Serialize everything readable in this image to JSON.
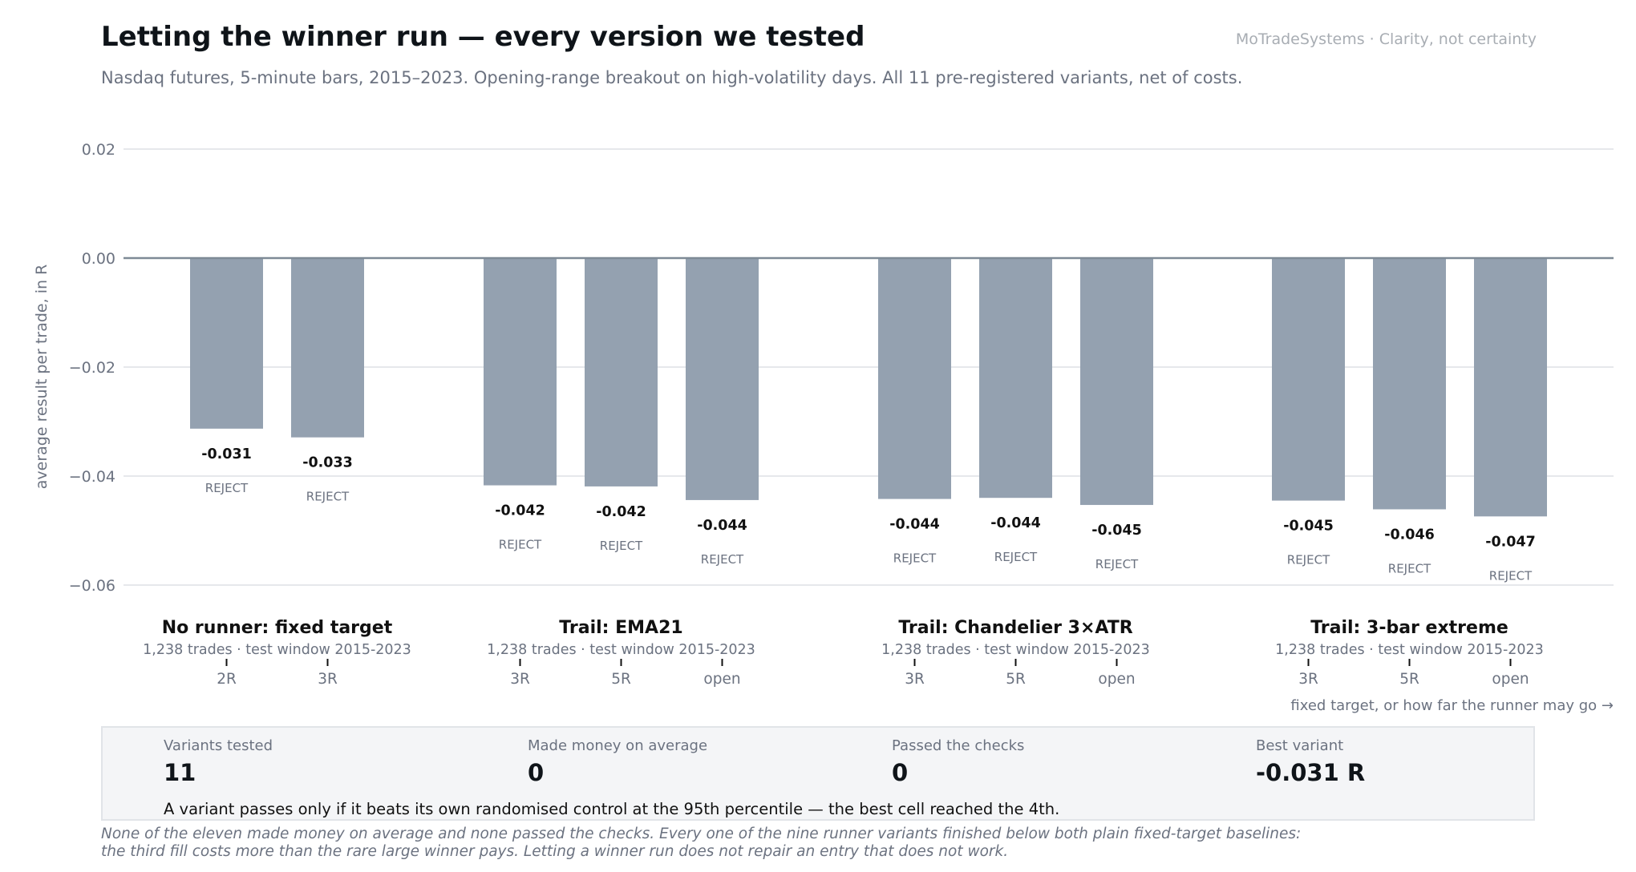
{
  "header": {
    "title": "Letting the winner run — every version we tested",
    "brand": "MoTradeSystems · Clarity, not certainty",
    "subtitle": "Nasdaq futures, 5-minute bars, 2015–2023. Opening-range breakout on high-volatility days. All 11 pre-registered variants, net of costs."
  },
  "chart_data": {
    "type": "bar",
    "ylabel": "average result per trade, in R",
    "xlabel": "fixed target, or how far the runner may go  →",
    "ylim": [
      -0.067,
      0.02
    ],
    "yticks": [
      0.02,
      0.0,
      -0.02,
      -0.04,
      -0.06
    ],
    "ytick_labels": [
      "0.02",
      "0.00",
      "−0.02",
      "−0.04",
      "−0.06"
    ],
    "grid": true,
    "bar_color": "#94a1b0",
    "groups": [
      {
        "name": "No runner: fixed target",
        "sub": "1,238 trades · test window 2015-2023",
        "bars": [
          {
            "category": "2R",
            "value": -0.0313,
            "label": "-0.031",
            "verdict": "REJECT"
          },
          {
            "category": "3R",
            "value": -0.0329,
            "label": "-0.033",
            "verdict": "REJECT"
          }
        ]
      },
      {
        "name": "Trail: EMA21",
        "sub": "1,238 trades · test window 2015-2023",
        "bars": [
          {
            "category": "3R",
            "value": -0.0417,
            "label": "-0.042",
            "verdict": "REJECT"
          },
          {
            "category": "5R",
            "value": -0.0419,
            "label": "-0.042",
            "verdict": "REJECT"
          },
          {
            "category": "open",
            "value": -0.0444,
            "label": "-0.044",
            "verdict": "REJECT"
          }
        ]
      },
      {
        "name": "Trail: Chandelier 3×ATR",
        "sub": "1,238 trades · test window 2015-2023",
        "bars": [
          {
            "category": "3R",
            "value": -0.0442,
            "label": "-0.044",
            "verdict": "REJECT"
          },
          {
            "category": "5R",
            "value": -0.044,
            "label": "-0.044",
            "verdict": "REJECT"
          },
          {
            "category": "open",
            "value": -0.0453,
            "label": "-0.045",
            "verdict": "REJECT"
          }
        ]
      },
      {
        "name": "Trail: 3-bar extreme",
        "sub": "1,238 trades · test window 2015-2023",
        "bars": [
          {
            "category": "3R",
            "value": -0.0445,
            "label": "-0.045",
            "verdict": "REJECT"
          },
          {
            "category": "5R",
            "value": -0.0461,
            "label": "-0.046",
            "verdict": "REJECT"
          },
          {
            "category": "open",
            "value": -0.0474,
            "label": "-0.047",
            "verdict": "REJECT"
          }
        ]
      }
    ]
  },
  "summary": {
    "stats": [
      {
        "label": "Variants tested",
        "value": "11"
      },
      {
        "label": "Made money on average",
        "value": "0"
      },
      {
        "label": "Passed the checks",
        "value": "0"
      },
      {
        "label": "Best variant",
        "value": "-0.031 R"
      }
    ],
    "rule": "A variant passes only if it beats its own randomised control at the 95th percentile — the best cell reached the 4th."
  },
  "footnote": "None of the eleven made money on average and none passed the checks. Every one of the nine runner variants finished below both plain fixed-target baselines: the third fill costs more than the rare large winner pays. Letting a winner run does not repair an entry that does not work."
}
